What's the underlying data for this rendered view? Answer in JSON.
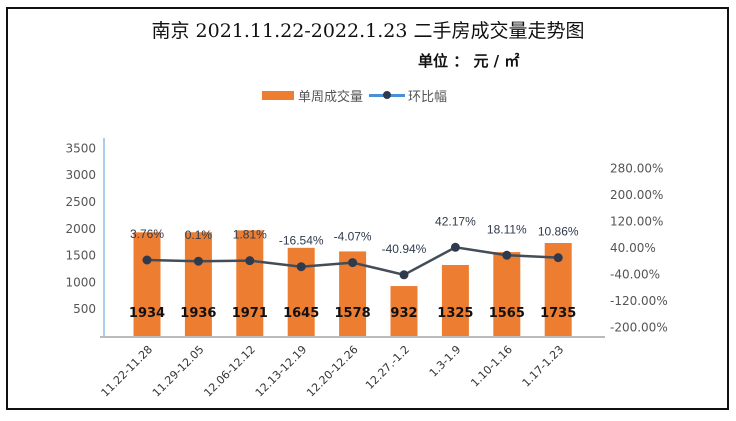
{
  "chart_data": {
    "type": "bar",
    "title": "南京 2021.11.22-2022.1.23  二手房成交量走势图",
    "subtitle": "单位 ： 元 / ㎡",
    "categories": [
      "11.22-11.28",
      "11.29-12.05",
      "12.06-12.12",
      "12.13-12.19",
      "12.20-12.26",
      "12.27.-1.2",
      "1.3-1.9",
      "1.10-1.16",
      "1.17-1.23"
    ],
    "series": [
      {
        "name": "单周成交量",
        "type": "bar",
        "axis": "left",
        "color": "#ED7D31",
        "values": [
          1934,
          1936,
          1971,
          1645,
          1578,
          932,
          1325,
          1565,
          1735
        ]
      },
      {
        "name": "环比幅",
        "type": "line",
        "axis": "right",
        "color": "#2F3B4C",
        "values": [
          3.76,
          0.1,
          1.81,
          -16.54,
          -4.07,
          -40.94,
          42.17,
          18.11,
          10.86
        ],
        "labels": [
          "3.76%",
          "0.1%",
          "1.81%",
          "-16.54%",
          "-4.07%",
          "-40.94%",
          "42.17%",
          "18.11%",
          "10.86%"
        ]
      }
    ],
    "y_left": {
      "ticks": [
        500,
        1000,
        1500,
        2000,
        2500,
        3000,
        3500
      ],
      "range": [
        0,
        3500
      ]
    },
    "y_right": {
      "ticks": [
        "280.00%",
        "200.00%",
        "120.00%",
        "40.00%",
        "-40.00%",
        "-120.00%",
        "-200.00%"
      ],
      "tick_values": [
        280,
        200,
        120,
        40,
        -40,
        -120,
        -200
      ]
    },
    "legend": "top",
    "grid": false
  }
}
